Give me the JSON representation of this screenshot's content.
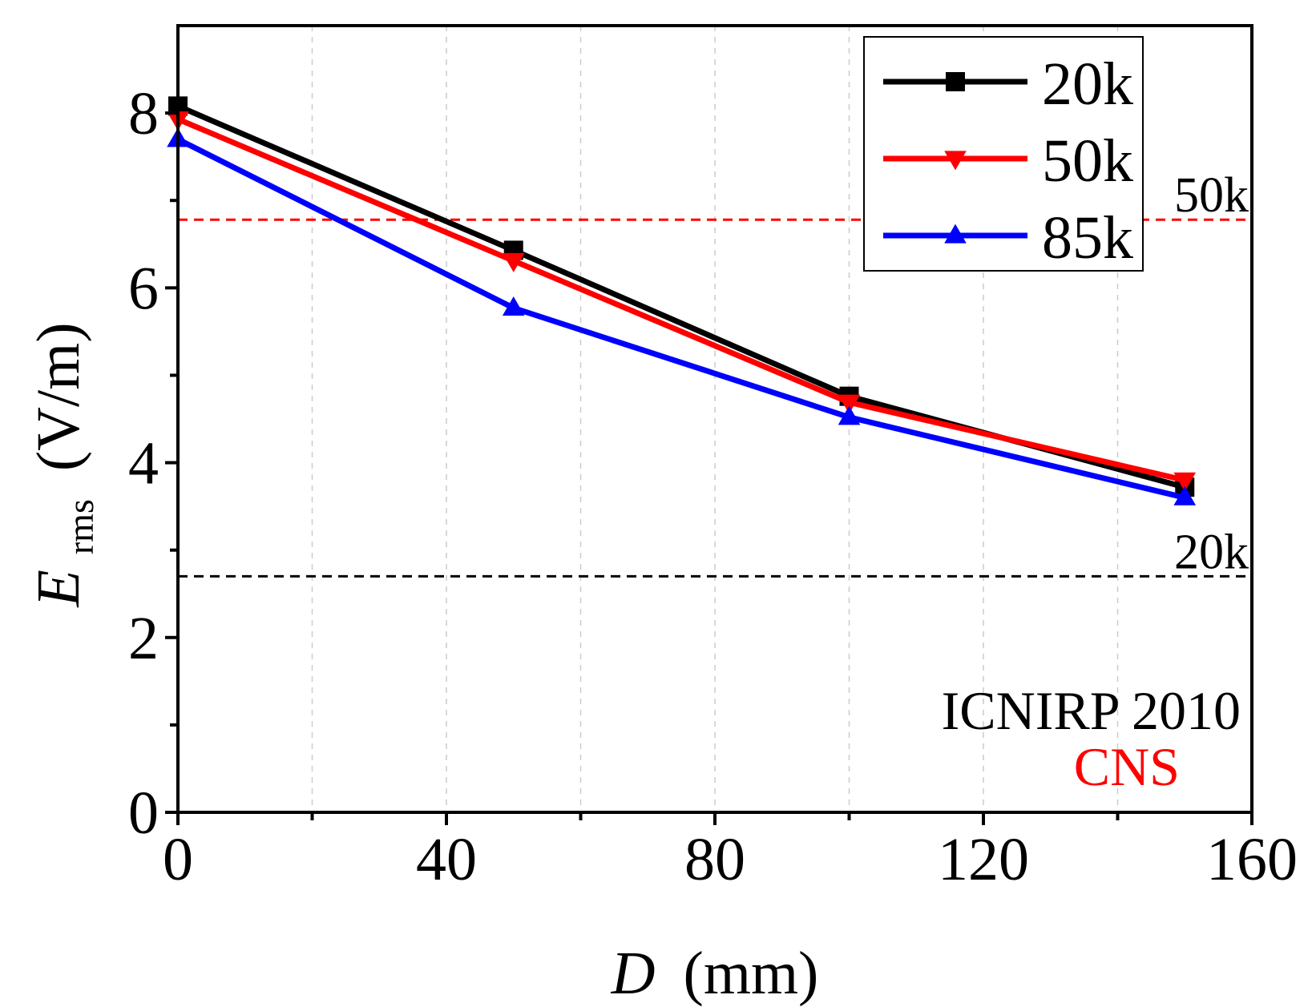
{
  "chart_data": {
    "type": "line",
    "xlabel": "D",
    "xlabel_unit": "(mm)",
    "ylabel": "E",
    "ylabel_sub": "rms",
    "ylabel_unit": "(V/m)",
    "xlim": [
      0,
      160
    ],
    "ylim": [
      0,
      9
    ],
    "xticks": [
      0,
      40,
      80,
      120,
      160
    ],
    "xtick_labels": [
      "0",
      "40",
      "80",
      "120",
      "160"
    ],
    "yticks": [
      0,
      2,
      4,
      6,
      8
    ],
    "ytick_labels": [
      "0",
      "2",
      "4",
      "6",
      "8"
    ],
    "grid": "vertical dashed",
    "legend_position": "top-right",
    "x": [
      0,
      50,
      100,
      150
    ],
    "series": [
      {
        "name": "20k",
        "color": "#000000",
        "marker": "square",
        "values": [
          8.08,
          6.43,
          4.76,
          3.72
        ]
      },
      {
        "name": "50k",
        "color": "#ff0000",
        "marker": "triangle-down",
        "values": [
          7.93,
          6.31,
          4.69,
          3.8
        ]
      },
      {
        "name": "85k",
        "color": "#0000ff",
        "marker": "triangle-up",
        "values": [
          7.7,
          5.77,
          4.52,
          3.6
        ]
      }
    ],
    "reference_lines": [
      {
        "label": "50k",
        "value": 6.78,
        "color": "#ff0000"
      },
      {
        "label": "20k",
        "value": 2.7,
        "color": "#000000"
      }
    ],
    "annotations": [
      {
        "text": "ICNIRP 2010",
        "color": "#000000"
      },
      {
        "text": "CNS",
        "color": "#ff0000"
      }
    ]
  }
}
